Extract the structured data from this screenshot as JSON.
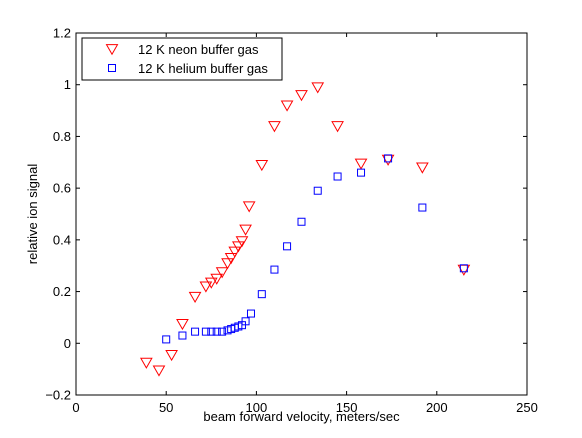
{
  "chart_data": {
    "type": "scatter",
    "xlabel": "beam forward velocity, meters/sec",
    "ylabel": "relative ion signal",
    "xlim": [
      0,
      250
    ],
    "ylim": [
      -0.2,
      1.2
    ],
    "xticks": [
      0,
      50,
      100,
      150,
      200,
      250
    ],
    "yticks": [
      -0.2,
      0,
      0.2,
      0.4,
      0.6,
      0.8,
      1,
      1.2
    ],
    "xtick_labels": [
      "0",
      "50",
      "100",
      "150",
      "200",
      "250"
    ],
    "ytick_labels": [
      "−0.2",
      "0",
      "0.2",
      "0.4",
      "0.6",
      "0.8",
      "1",
      "1.2"
    ],
    "grid": false,
    "legend_position": "top-left",
    "series": [
      {
        "name": "12 K neon buffer gas",
        "marker": "triangle-down",
        "color": "#ff0000",
        "x": [
          39,
          46,
          53,
          59,
          66,
          72,
          75,
          78,
          81,
          84,
          86,
          88,
          90,
          92,
          94,
          96,
          103,
          110,
          117,
          125,
          134,
          145,
          158,
          173,
          192,
          215
        ],
        "y": [
          -0.075,
          -0.105,
          -0.045,
          0.075,
          0.18,
          0.22,
          0.235,
          0.25,
          0.275,
          0.31,
          0.33,
          0.355,
          0.375,
          0.395,
          0.44,
          0.53,
          0.69,
          0.84,
          0.92,
          0.96,
          0.99,
          0.84,
          0.695,
          0.71,
          0.68,
          0.285
        ]
      },
      {
        "name": "12 K helium buffer gas",
        "marker": "square",
        "color": "#0000ff",
        "x": [
          50,
          59,
          66,
          72,
          75,
          78,
          81,
          84,
          86,
          88,
          90,
          92,
          94,
          97,
          103,
          110,
          117,
          125,
          134,
          145,
          158,
          173,
          192,
          215
        ],
        "y": [
          0.015,
          0.03,
          0.045,
          0.045,
          0.045,
          0.045,
          0.045,
          0.05,
          0.055,
          0.06,
          0.065,
          0.07,
          0.085,
          0.115,
          0.19,
          0.285,
          0.375,
          0.47,
          0.59,
          0.645,
          0.66,
          0.715,
          0.525,
          0.29
        ]
      }
    ]
  }
}
